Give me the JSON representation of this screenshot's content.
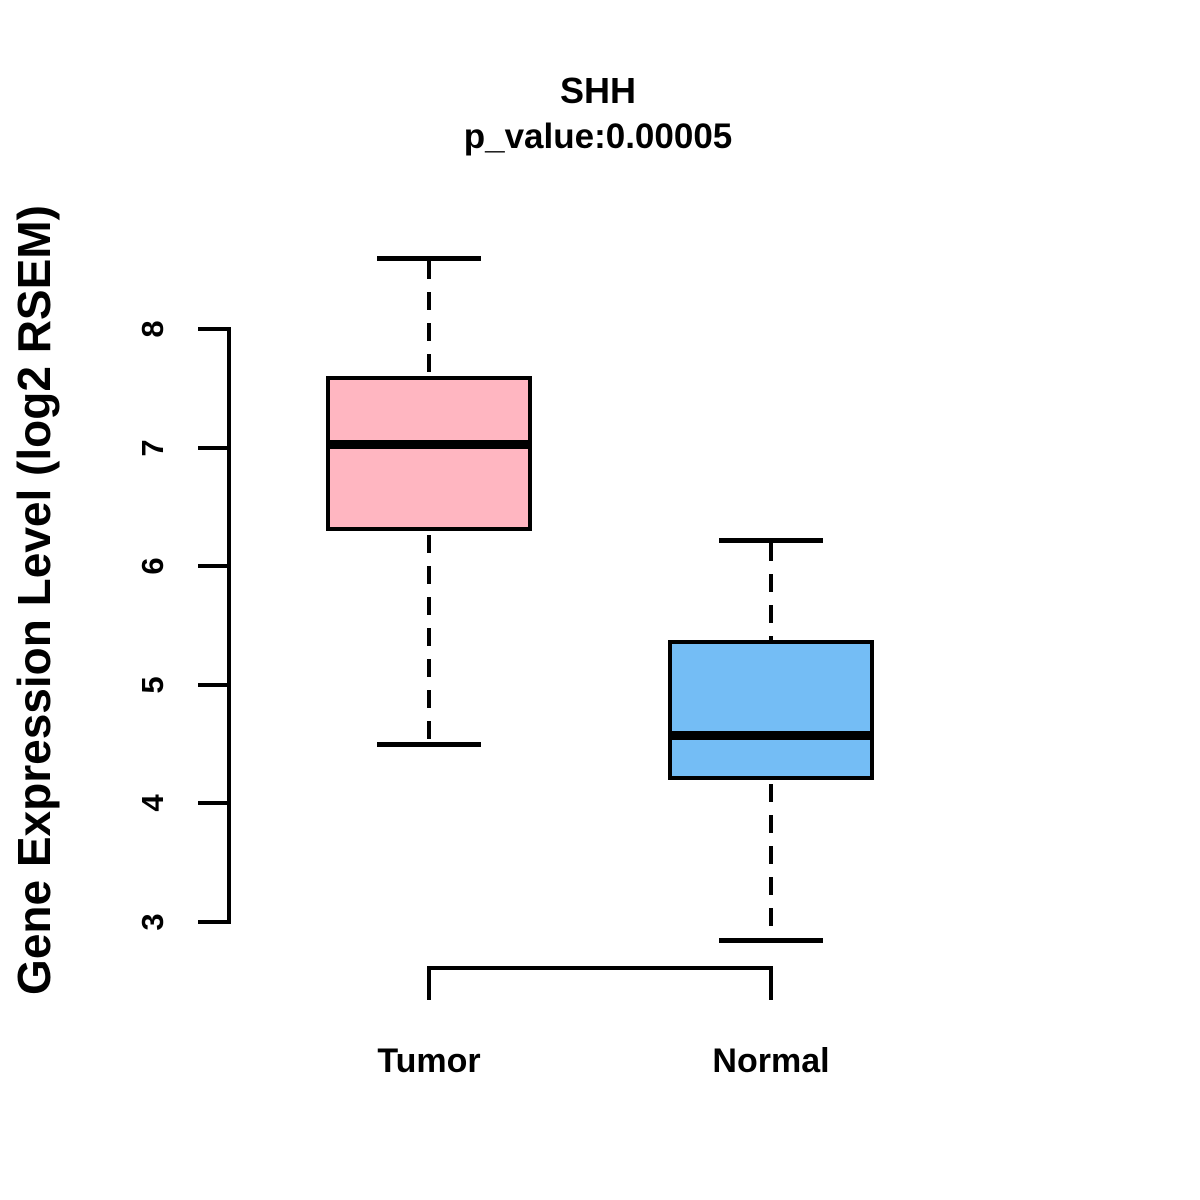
{
  "figure": {
    "background": "#ffffff",
    "text_color": "#000000"
  },
  "chart_data": {
    "type": "boxplot",
    "title": "SHH",
    "subtitle": "p_value:0.00005",
    "ylabel": "Gene Expression Level (log2 RSEM)",
    "xlabel": "",
    "ylim": [
      2.6,
      8.8
    ],
    "yticks": [
      3,
      4,
      5,
      6,
      7,
      8
    ],
    "grid": false,
    "legend": "none",
    "axis_color": "#000000",
    "median_color": "#000000",
    "categories": [
      "Tumor",
      "Normal"
    ],
    "groups": [
      {
        "label": "Tumor",
        "color": "#FFB6C1",
        "whisker_low": 4.5,
        "q1": 6.3,
        "median": 7.03,
        "q3": 7.6,
        "whisker_high": 8.6,
        "outliers": []
      },
      {
        "label": "Normal",
        "color": "#74BDF5",
        "whisker_low": 2.85,
        "q1": 4.2,
        "median": 4.58,
        "q3": 5.38,
        "whisker_high": 6.22,
        "outliers": []
      }
    ]
  }
}
